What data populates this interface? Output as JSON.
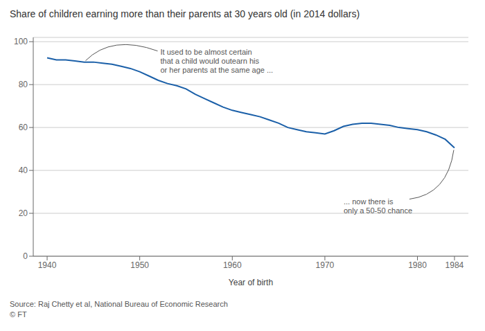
{
  "chart_data": {
    "type": "line",
    "title": "Share of children earning more than their parents at 30 years old (in 2014 dollars)",
    "x_label": "Year of birth",
    "x": [
      1940,
      1941,
      1942,
      1943,
      1944,
      1945,
      1946,
      1947,
      1948,
      1949,
      1950,
      1951,
      1952,
      1953,
      1954,
      1955,
      1956,
      1957,
      1958,
      1959,
      1960,
      1961,
      1962,
      1963,
      1964,
      1965,
      1966,
      1967,
      1968,
      1969,
      1970,
      1971,
      1972,
      1973,
      1974,
      1975,
      1976,
      1977,
      1978,
      1979,
      1980,
      1981,
      1982,
      1983,
      1984
    ],
    "values": [
      92.5,
      91.5,
      91.5,
      91.0,
      90.5,
      90.5,
      90.0,
      89.5,
      88.5,
      87.5,
      86.0,
      84.0,
      82.0,
      80.5,
      79.5,
      78.0,
      75.5,
      73.5,
      71.5,
      69.5,
      68.0,
      67.0,
      66.0,
      65.0,
      63.5,
      62.0,
      60.0,
      59.0,
      58.0,
      57.5,
      57.0,
      58.5,
      60.5,
      61.5,
      62.0,
      62.0,
      61.5,
      61.0,
      60.0,
      59.5,
      59.0,
      58.0,
      56.5,
      54.5,
      50.5
    ],
    "color": "#1a5fa8",
    "xlim": [
      1938.5,
      1985.5
    ],
    "xticks": [
      1940,
      1950,
      1960,
      1970,
      1980,
      1984
    ],
    "ylim": [
      0,
      102
    ],
    "yticks": [
      0,
      20,
      40,
      60,
      80,
      100
    ],
    "grid": "y",
    "annotations": [
      {
        "text": "It used to be almost certain\nthat a child would outearn his\nor her parents at the same age ..."
      },
      {
        "text": "... now there is\nonly a 50-50 chance"
      }
    ],
    "source": "Source: Raj Chetty et al, National Bureau of Economic Research\n© FT"
  }
}
